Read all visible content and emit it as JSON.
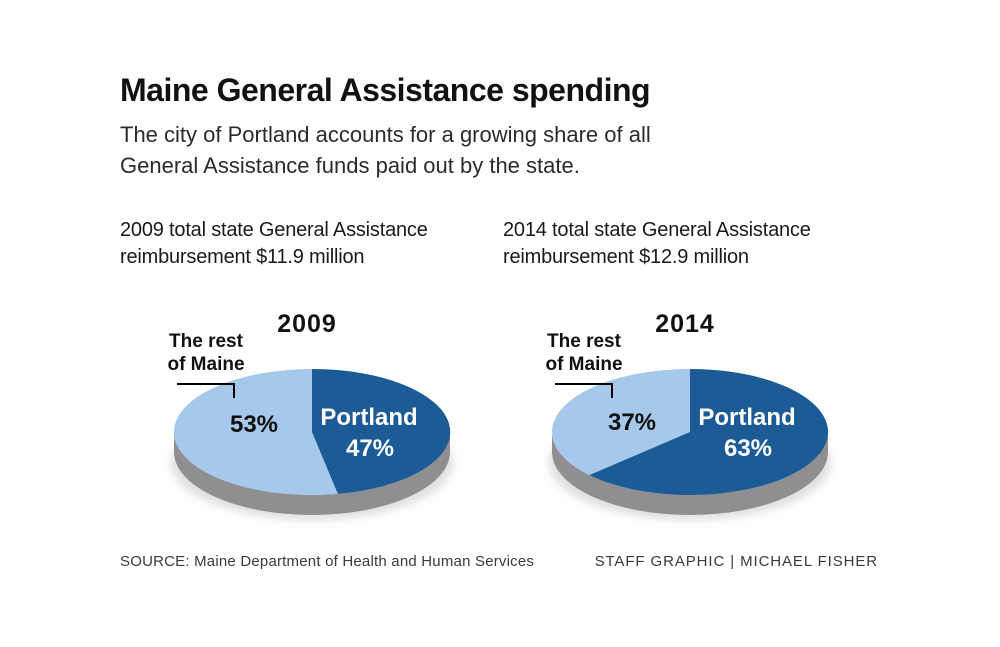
{
  "header": {
    "title": "Maine General Assistance spending",
    "subtitle_line1": "The city of Portland accounts for a growing share of all",
    "subtitle_line2": "General Assistance funds paid out by the state."
  },
  "colors": {
    "portland_blue": "#1d5b97",
    "rest_light_blue": "#a6c8ea",
    "pie_side_gray": "#8f8f91",
    "text_black": "#111111",
    "portland_text_white": "#ffffff"
  },
  "chart_data": [
    {
      "type": "pie",
      "title": "2009",
      "year": "2009",
      "header_line1": "2009 total state General Assistance",
      "header_line2": "reimbursement $11.9 million",
      "total_reimbursement_millions": 11.9,
      "slices": [
        {
          "label": "Portland",
          "value": 47,
          "color": "#1d5b97"
        },
        {
          "label": "The rest of Maine",
          "value": 53,
          "color": "#a6c8ea"
        }
      ],
      "labels": {
        "rest_line1": "The rest",
        "rest_line2": "of Maine",
        "rest_pct": "53%",
        "portland": "Portland",
        "portland_pct": "47%"
      }
    },
    {
      "type": "pie",
      "title": "2014",
      "year": "2014",
      "header_line1": "2014 total state General Assistance",
      "header_line2": "reimbursement $12.9 million",
      "total_reimbursement_millions": 12.9,
      "slices": [
        {
          "label": "Portland",
          "value": 63,
          "color": "#1d5b97"
        },
        {
          "label": "The rest of Maine",
          "value": 37,
          "color": "#a6c8ea"
        }
      ],
      "labels": {
        "rest_line1": "The rest",
        "rest_line2": "of Maine",
        "rest_pct": "37%",
        "portland": "Portland",
        "portland_pct": "63%"
      }
    }
  ],
  "footer": {
    "source": "SOURCE: Maine Department of Health and Human Services",
    "credit": "STAFF GRAPHIC | MICHAEL FISHER"
  }
}
